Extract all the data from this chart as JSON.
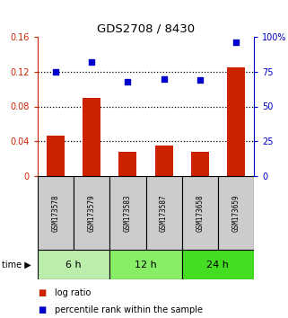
{
  "title": "GDS2708 / 8430",
  "samples": [
    "GSM173578",
    "GSM173579",
    "GSM173583",
    "GSM173587",
    "GSM173658",
    "GSM173659"
  ],
  "log_ratio": [
    0.046,
    0.09,
    0.028,
    0.035,
    0.028,
    0.125
  ],
  "percentile_rank": [
    75,
    82,
    68,
    70,
    69,
    96
  ],
  "groups": [
    {
      "label": "6 h",
      "start": 0,
      "end": 2,
      "color": "#bbeeaa"
    },
    {
      "label": "12 h",
      "start": 2,
      "end": 4,
      "color": "#88ee66"
    },
    {
      "label": "24 h",
      "start": 4,
      "end": 6,
      "color": "#44dd22"
    }
  ],
  "left_ylim": [
    0,
    0.16
  ],
  "right_ylim": [
    0,
    100
  ],
  "left_yticks": [
    0,
    0.04,
    0.08,
    0.12,
    0.16
  ],
  "left_yticklabels": [
    "0",
    "0.04",
    "0.08",
    "0.12",
    "0.16"
  ],
  "right_yticks": [
    0,
    25,
    50,
    75,
    100
  ],
  "right_yticklabels": [
    "0",
    "25",
    "50",
    "75",
    "100%"
  ],
  "bar_color": "#cc2200",
  "scatter_color": "#0000cc",
  "dotted_lines": [
    0.04,
    0.08,
    0.12
  ],
  "ylabel_left_color": "#cc2200",
  "ylabel_right_color": "#0000cc",
  "title_color": "#000000",
  "sample_box_color": "#cccccc",
  "bar_width": 0.5,
  "legend_bar_label": "log ratio",
  "legend_scatter_label": "percentile rank within the sample"
}
